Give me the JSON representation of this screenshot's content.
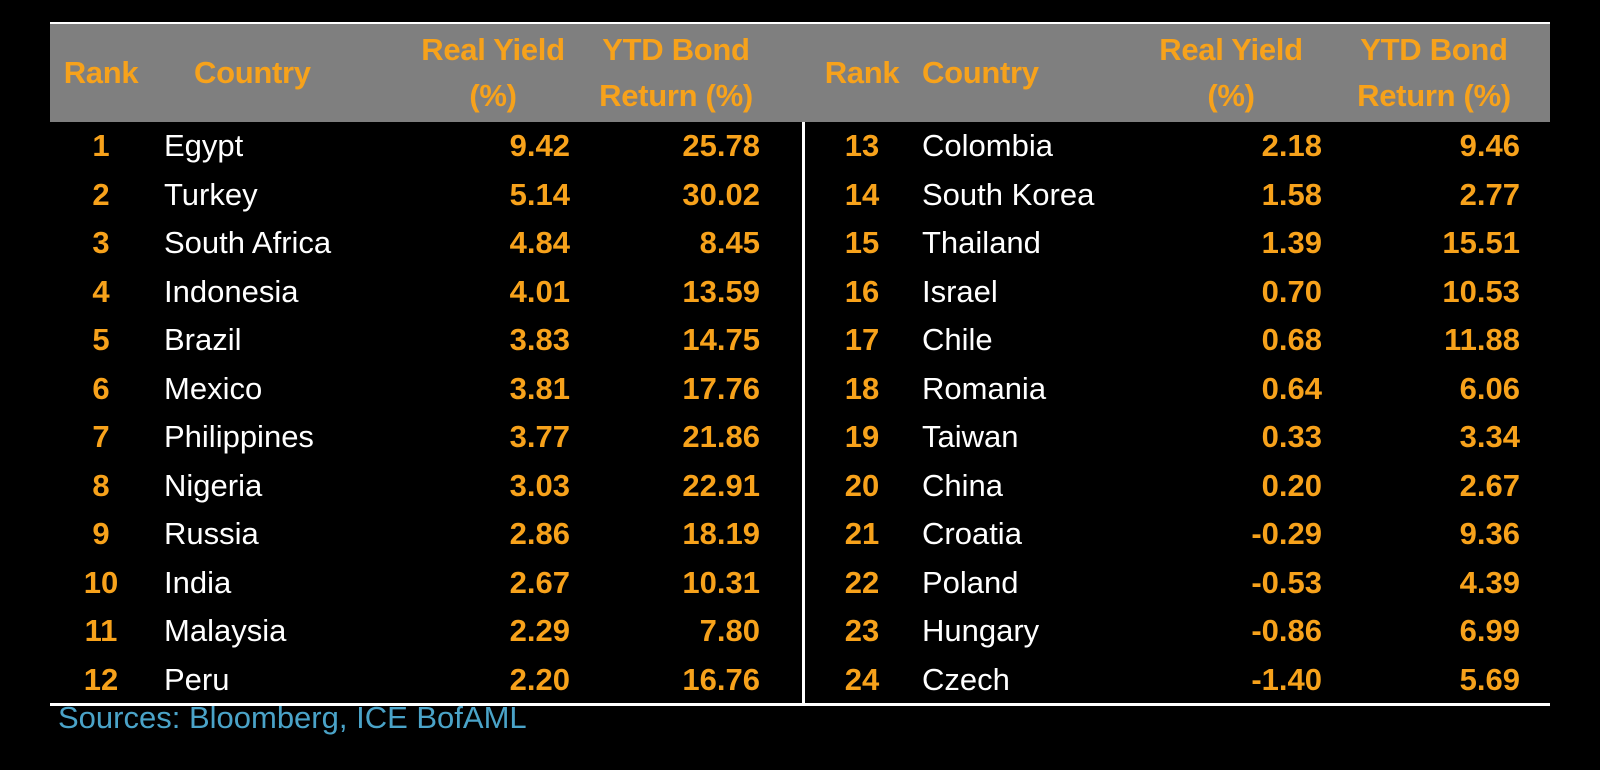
{
  "chart_data": {
    "type": "table",
    "headers": {
      "rank": "Rank",
      "country": "Country",
      "real_yield": "Real Yield\n(%)",
      "ytd_return": "YTD Bond\nReturn (%)"
    },
    "rows": [
      {
        "rank": "1",
        "country": "Egypt",
        "real_yield": "9.42",
        "ytd_return": "25.78"
      },
      {
        "rank": "2",
        "country": "Turkey",
        "real_yield": "5.14",
        "ytd_return": "30.02"
      },
      {
        "rank": "3",
        "country": "South Africa",
        "real_yield": "4.84",
        "ytd_return": "8.45"
      },
      {
        "rank": "4",
        "country": "Indonesia",
        "real_yield": "4.01",
        "ytd_return": "13.59"
      },
      {
        "rank": "5",
        "country": "Brazil",
        "real_yield": "3.83",
        "ytd_return": "14.75"
      },
      {
        "rank": "6",
        "country": "Mexico",
        "real_yield": "3.81",
        "ytd_return": "17.76"
      },
      {
        "rank": "7",
        "country": "Philippines",
        "real_yield": "3.77",
        "ytd_return": "21.86"
      },
      {
        "rank": "8",
        "country": "Nigeria",
        "real_yield": "3.03",
        "ytd_return": "22.91"
      },
      {
        "rank": "9",
        "country": "Russia",
        "real_yield": "2.86",
        "ytd_return": "18.19"
      },
      {
        "rank": "10",
        "country": "India",
        "real_yield": "2.67",
        "ytd_return": "10.31"
      },
      {
        "rank": "11",
        "country": "Malaysia",
        "real_yield": "2.29",
        "ytd_return": "7.80"
      },
      {
        "rank": "12",
        "country": "Peru",
        "real_yield": "2.20",
        "ytd_return": "16.76"
      },
      {
        "rank": "13",
        "country": "Colombia",
        "real_yield": "2.18",
        "ytd_return": "9.46"
      },
      {
        "rank": "14",
        "country": "South Korea",
        "real_yield": "1.58",
        "ytd_return": "2.77"
      },
      {
        "rank": "15",
        "country": "Thailand",
        "real_yield": "1.39",
        "ytd_return": "15.51"
      },
      {
        "rank": "16",
        "country": "Israel",
        "real_yield": "0.70",
        "ytd_return": "10.53"
      },
      {
        "rank": "17",
        "country": "Chile",
        "real_yield": "0.68",
        "ytd_return": "11.88"
      },
      {
        "rank": "18",
        "country": "Romania",
        "real_yield": "0.64",
        "ytd_return": "6.06"
      },
      {
        "rank": "19",
        "country": "Taiwan",
        "real_yield": "0.33",
        "ytd_return": "3.34"
      },
      {
        "rank": "20",
        "country": "China",
        "real_yield": "0.20",
        "ytd_return": "2.67"
      },
      {
        "rank": "21",
        "country": "Croatia",
        "real_yield": "-0.29",
        "ytd_return": "9.36"
      },
      {
        "rank": "22",
        "country": "Poland",
        "real_yield": "-0.53",
        "ytd_return": "4.39"
      },
      {
        "rank": "23",
        "country": "Hungary",
        "real_yield": "-0.86",
        "ytd_return": "6.99"
      },
      {
        "rank": "24",
        "country": "Czech",
        "real_yield": "-1.40",
        "ytd_return": "5.69"
      }
    ]
  },
  "footer": {
    "source": "Sources: Bloomberg, ICE BofAML"
  },
  "colors": {
    "background": "#000000",
    "header_band": "#7f7f7f",
    "accent_orange": "#f7a21b",
    "text_white": "#ffffff",
    "source_blue": "#4aa3c8"
  }
}
